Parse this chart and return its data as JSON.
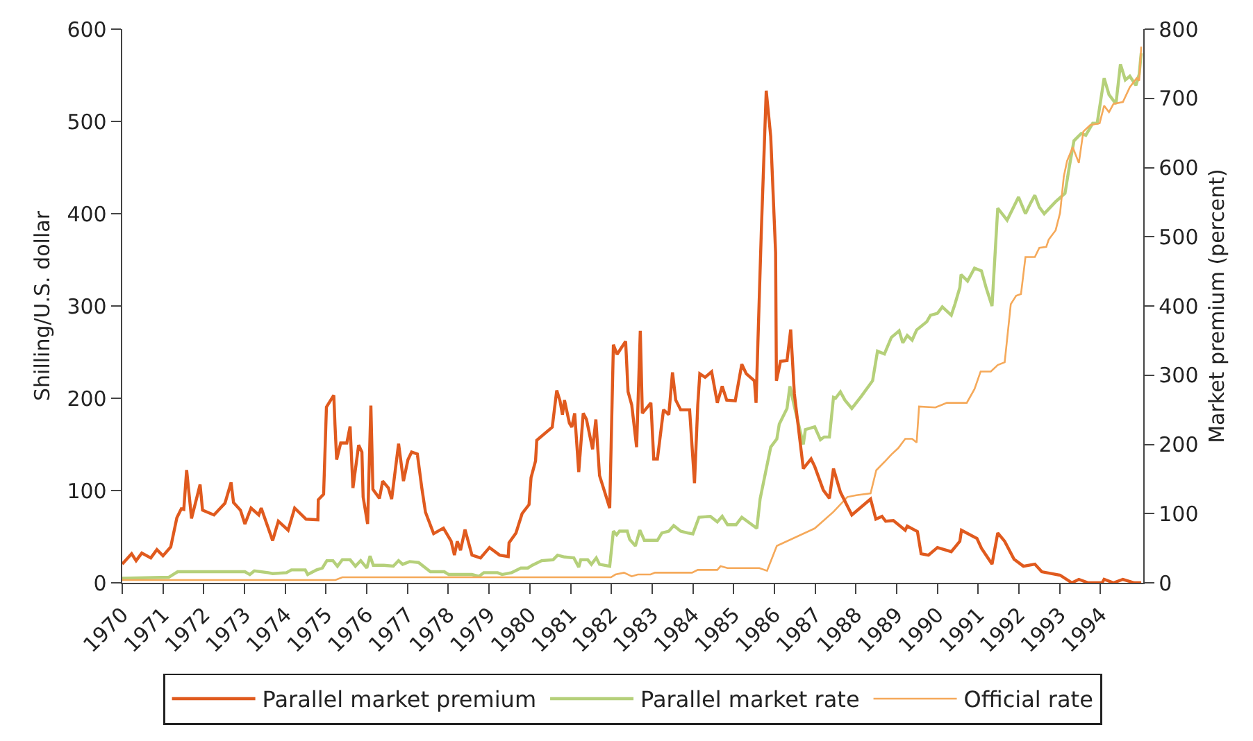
{
  "chart_data": {
    "type": "line",
    "ylabel": "Shilling/U.S. dollar",
    "y2label": "Market premium (percent)",
    "xlim": [
      1970,
      1995.05
    ],
    "xticks": [
      1970,
      1971,
      1972,
      1973,
      1974,
      1975,
      1976,
      1977,
      1978,
      1979,
      1980,
      1981,
      1982,
      1983,
      1984,
      1985,
      1986,
      1987,
      1988,
      1989,
      1990,
      1991,
      1992,
      1993,
      1994
    ],
    "ylim": [
      0,
      600
    ],
    "yticks": [
      0,
      100,
      200,
      300,
      400,
      500,
      600
    ],
    "y2lim": [
      0,
      800
    ],
    "y2ticks": [
      0,
      100,
      200,
      300,
      400,
      500,
      600,
      700,
      800
    ],
    "legend": "bottom",
    "marker": "none",
    "line_style": "solid",
    "series": [
      {
        "name": "Parallel market premium",
        "color": "#e05a1e",
        "axis": "y2",
        "x": [
          1970.0,
          1970.23,
          1970.34,
          1970.48,
          1970.7,
          1970.85,
          1971.0,
          1971.19,
          1971.34,
          1971.45,
          1971.51,
          1971.58,
          1971.7,
          1971.91,
          1971.97,
          1972.25,
          1972.52,
          1972.67,
          1972.73,
          1972.9,
          1973.01,
          1973.16,
          1973.35,
          1973.41,
          1973.69,
          1973.83,
          1974.07,
          1974.23,
          1974.51,
          1974.8,
          1974.81,
          1974.94,
          1975.01,
          1975.19,
          1975.22,
          1975.26,
          1975.36,
          1975.51,
          1975.59,
          1975.66,
          1975.8,
          1975.88,
          1975.91,
          1976.02,
          1976.1,
          1976.15,
          1976.31,
          1976.39,
          1976.53,
          1976.61,
          1976.78,
          1976.9,
          1977.01,
          1977.1,
          1977.24,
          1977.35,
          1977.44,
          1977.64,
          1977.88,
          1978.07,
          1978.15,
          1978.22,
          1978.3,
          1978.41,
          1978.58,
          1978.79,
          1979.01,
          1979.26,
          1979.47,
          1979.49,
          1979.66,
          1979.81,
          1979.98,
          1980.03,
          1980.14,
          1980.17,
          1980.55,
          1980.66,
          1980.74,
          1980.8,
          1980.85,
          1980.97,
          1981.03,
          1981.1,
          1981.2,
          1981.31,
          1981.39,
          1981.54,
          1981.62,
          1981.71,
          1981.96,
          1982.05,
          1982.14,
          1982.35,
          1982.41,
          1982.5,
          1982.62,
          1982.71,
          1982.76,
          1982.97,
          1983.04,
          1983.13,
          1983.28,
          1983.41,
          1983.5,
          1983.58,
          1983.7,
          1983.92,
          1984.04,
          1984.12,
          1984.17,
          1984.3,
          1984.46,
          1984.6,
          1984.72,
          1984.83,
          1985.04,
          1985.2,
          1985.31,
          1985.51,
          1985.55,
          1985.68,
          1985.8,
          1985.91,
          1986.03,
          1986.05,
          1986.15,
          1986.31,
          1986.4,
          1986.49,
          1986.71,
          1986.9,
          1986.99,
          1987.2,
          1987.35,
          1987.45,
          1987.62,
          1987.9,
          1988.36,
          1988.49,
          1988.64,
          1988.73,
          1988.92,
          1989.21,
          1989.26,
          1989.51,
          1989.6,
          1989.78,
          1990.0,
          1990.34,
          1990.55,
          1990.59,
          1990.97,
          1991.08,
          1991.34,
          1991.48,
          1991.65,
          1991.88,
          1992.11,
          1992.39,
          1992.56,
          1993.01,
          1993.3,
          1993.47,
          1993.7,
          1994.04,
          1994.09,
          1994.32,
          1994.55,
          1994.83,
          1995.0
        ],
        "values": [
          27,
          42,
          32,
          43,
          36,
          48,
          39,
          52,
          94,
          107,
          106,
          163,
          93,
          142,
          105,
          98,
          115,
          145,
          116,
          105,
          85,
          108,
          98,
          108,
          61,
          89,
          76,
          108,
          92,
          91,
          120,
          128,
          254,
          271,
          228,
          178,
          202,
          202,
          226,
          137,
          199,
          189,
          124,
          85,
          256,
          135,
          122,
          147,
          137,
          121,
          201,
          147,
          178,
          189,
          186,
          137,
          102,
          71,
          79,
          60,
          40,
          60,
          47,
          77,
          40,
          36,
          51,
          40,
          38,
          58,
          72,
          100,
          113,
          152,
          176,
          206,
          225,
          278,
          263,
          243,
          264,
          231,
          225,
          245,
          160,
          245,
          236,
          193,
          236,
          155,
          108,
          344,
          330,
          349,
          276,
          257,
          196,
          364,
          245,
          260,
          179,
          179,
          250,
          243,
          304,
          264,
          250,
          250,
          144,
          257,
          302,
          297,
          305,
          260,
          284,
          264,
          263,
          316,
          302,
          292,
          260,
          509,
          711,
          645,
          477,
          292,
          320,
          321,
          366,
          273,
          165,
          179,
          168,
          134,
          122,
          165,
          131,
          98,
          121,
          92,
          96,
          89,
          90,
          76,
          82,
          74,
          42,
          40,
          51,
          45,
          60,
          76,
          64,
          50,
          27,
          72,
          60,
          34,
          24,
          27,
          16,
          11,
          0,
          5,
          0,
          0,
          5,
          0,
          5,
          0,
          0
        ]
      },
      {
        "name": "Parallel market rate",
        "color": "#b5d07a",
        "x": [
          1970.0,
          1971.14,
          1971.36,
          1973.01,
          1973.13,
          1973.24,
          1973.58,
          1973.69,
          1974.03,
          1974.15,
          1974.49,
          1974.55,
          1974.77,
          1974.91,
          1975.02,
          1975.17,
          1975.28,
          1975.4,
          1975.59,
          1975.72,
          1975.85,
          1976.0,
          1976.08,
          1976.16,
          1976.42,
          1976.65,
          1976.78,
          1976.88,
          1977.05,
          1977.27,
          1977.56,
          1977.9,
          1978.01,
          1978.58,
          1978.75,
          1978.87,
          1979.21,
          1979.32,
          1979.55,
          1979.78,
          1979.95,
          1980.06,
          1980.29,
          1980.57,
          1980.68,
          1980.85,
          1981.08,
          1981.2,
          1981.25,
          1981.42,
          1981.51,
          1981.63,
          1981.71,
          1981.96,
          1982.05,
          1982.13,
          1982.2,
          1982.39,
          1982.45,
          1982.59,
          1982.7,
          1982.81,
          1983.13,
          1983.24,
          1983.41,
          1983.53,
          1983.7,
          1983.87,
          1984.0,
          1984.15,
          1984.43,
          1984.6,
          1984.72,
          1984.85,
          1985.06,
          1985.2,
          1985.57,
          1985.65,
          1985.91,
          1986.06,
          1986.12,
          1986.31,
          1986.38,
          1986.48,
          1986.71,
          1986.76,
          1986.99,
          1987.13,
          1987.22,
          1987.35,
          1987.45,
          1987.5,
          1987.62,
          1987.73,
          1987.9,
          1988.13,
          1988.41,
          1988.53,
          1988.7,
          1988.87,
          1989.06,
          1989.15,
          1989.26,
          1989.38,
          1989.49,
          1989.74,
          1989.83,
          1990.0,
          1990.12,
          1990.34,
          1990.43,
          1990.55,
          1990.58,
          1990.74,
          1990.91,
          1991.08,
          1991.2,
          1991.34,
          1991.48,
          1991.71,
          1991.99,
          1992.16,
          1992.28,
          1992.39,
          1992.5,
          1992.62,
          1992.9,
          1993.13,
          1993.24,
          1993.35,
          1993.53,
          1993.64,
          1993.81,
          1993.92,
          1994.09,
          1994.21,
          1994.38,
          1994.49,
          1994.61,
          1994.72,
          1994.87,
          1994.95,
          1995.0
        ],
        "values": [
          5,
          6,
          12,
          12,
          9,
          13,
          11,
          10,
          11,
          14,
          14,
          9,
          14,
          16,
          24,
          24,
          18,
          25,
          25,
          18,
          24,
          16,
          29,
          19,
          19,
          18,
          24,
          20,
          23,
          22,
          12,
          12,
          9,
          9,
          7,
          11,
          11,
          9,
          11,
          16,
          16,
          19,
          24,
          25,
          30,
          28,
          27,
          17,
          25,
          25,
          20,
          27,
          20,
          18,
          56,
          52,
          56,
          56,
          47,
          40,
          57,
          46,
          46,
          54,
          56,
          62,
          56,
          54,
          53,
          71,
          72,
          66,
          72,
          63,
          63,
          71,
          59,
          91,
          147,
          156,
          172,
          189,
          213,
          193,
          150,
          166,
          169,
          155,
          158,
          158,
          201,
          200,
          207,
          198,
          189,
          202,
          219,
          251,
          248,
          266,
          273,
          260,
          268,
          263,
          274,
          283,
          290,
          292,
          299,
          290,
          302,
          320,
          334,
          327,
          341,
          338,
          319,
          300,
          406,
          393,
          418,
          400,
          411,
          420,
          407,
          400,
          413,
          422,
          452,
          479,
          487,
          485,
          498,
          498,
          547,
          529,
          519,
          562,
          545,
          549,
          539,
          551,
          574
        ]
      },
      {
        "name": "Official rate",
        "color": "#f5a95a",
        "x": [
          1970.0,
          1975.23,
          1975.4,
          1977.9,
          1981.99,
          1982.1,
          1982.31,
          1982.5,
          1982.65,
          1982.96,
          1983.07,
          1983.98,
          1984.12,
          1984.6,
          1984.68,
          1984.85,
          1985.63,
          1985.82,
          1986.06,
          1986.99,
          1987.45,
          1987.79,
          1988.01,
          1988.36,
          1988.5,
          1988.7,
          1988.87,
          1989.04,
          1989.21,
          1989.38,
          1989.49,
          1989.55,
          1989.95,
          1990.12,
          1990.23,
          1990.72,
          1990.91,
          1991.06,
          1991.31,
          1991.48,
          1991.65,
          1991.8,
          1991.93,
          1992.05,
          1992.16,
          1992.39,
          1992.5,
          1992.67,
          1992.73,
          1992.9,
          1993.01,
          1993.1,
          1993.18,
          1993.32,
          1993.47,
          1993.58,
          1993.75,
          1993.98,
          1994.09,
          1994.21,
          1994.32,
          1994.55,
          1994.72,
          1994.89,
          1994.95,
          1995.0
        ],
        "values": [
          3,
          3,
          6,
          6,
          6,
          9,
          11,
          7,
          9,
          9,
          11,
          11,
          14,
          14,
          18,
          16,
          16,
          13,
          40,
          59,
          77,
          93,
          95,
          97,
          122,
          131,
          139,
          146,
          156,
          156,
          152,
          191,
          190,
          193,
          195,
          195,
          210,
          229,
          229,
          236,
          239,
          302,
          311,
          313,
          353,
          353,
          363,
          364,
          372,
          382,
          401,
          440,
          457,
          472,
          455,
          489,
          496,
          498,
          517,
          510,
          519,
          521,
          537,
          547,
          544,
          581
        ]
      }
    ]
  }
}
